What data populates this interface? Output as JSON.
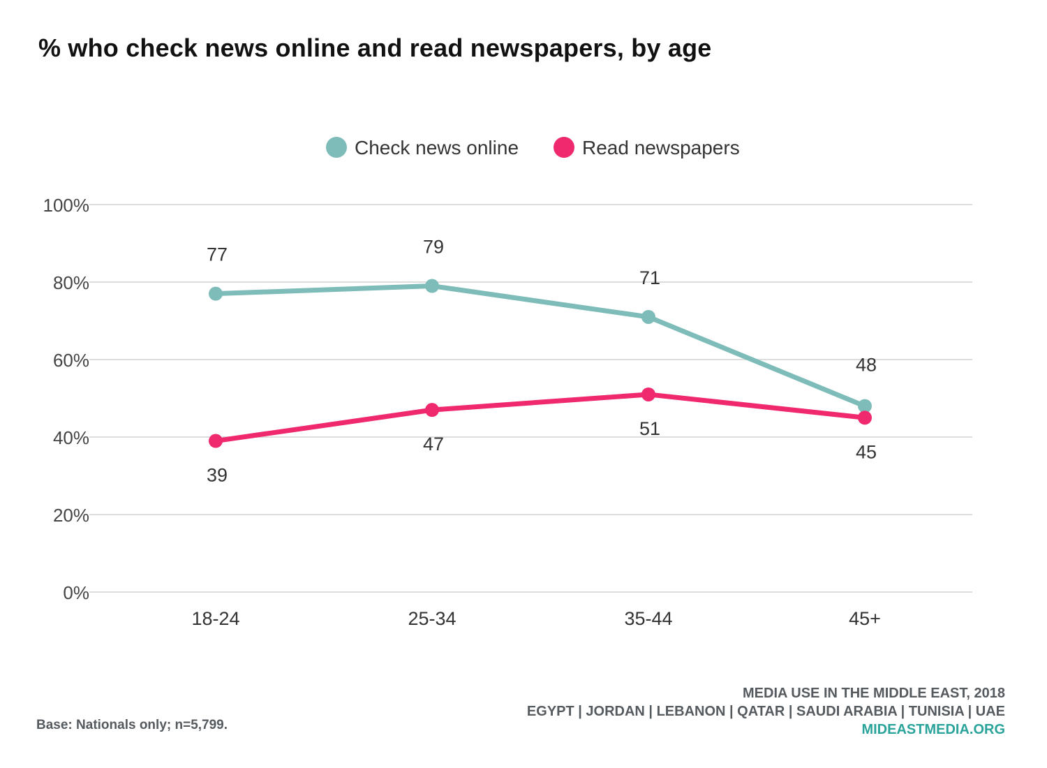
{
  "page": {
    "title": "% who check news online and read newspapers, by age",
    "source_line1": "MEDIA USE IN THE MIDDLE EAST, 2018",
    "source_line2": "EGYPT | JORDAN | LEBANON | QATAR | SAUDI ARABIA | TUNISIA | UAE",
    "source_site": "MIDEASTMEDIA.ORG",
    "base_note": "Base: Nationals only; n=5,799."
  },
  "chart_data": {
    "type": "line",
    "title": "% who check news online and read newspapers, by age",
    "categories": [
      "18-24",
      "25-34",
      "35-44",
      "45+"
    ],
    "yticks": [
      "0%",
      "20%",
      "40%",
      "60%",
      "80%",
      "100%"
    ],
    "ylim": [
      0,
      100
    ],
    "grid": true,
    "legend_position": "top-center",
    "series": [
      {
        "name": "Check news online",
        "values": [
          77,
          79,
          71,
          48
        ],
        "color": "#7dbcb8"
      },
      {
        "name": "Read newspapers",
        "values": [
          39,
          47,
          51,
          45
        ],
        "color": "#f0286e"
      }
    ]
  }
}
